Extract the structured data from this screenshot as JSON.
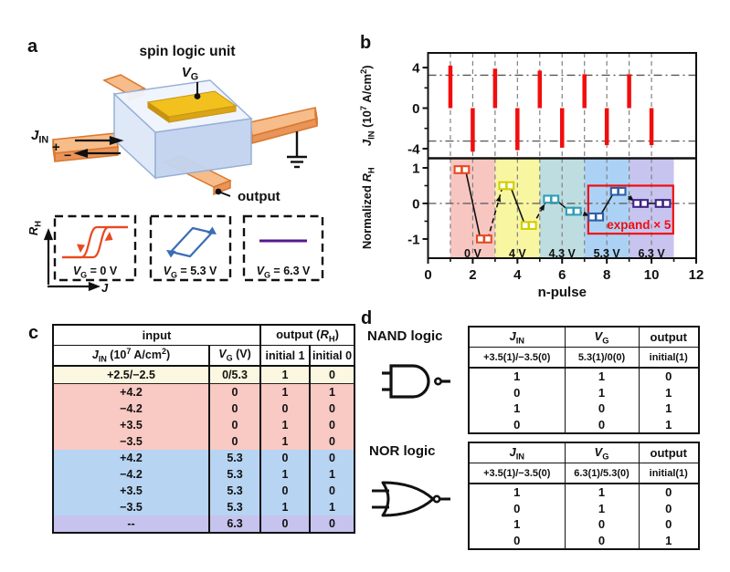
{
  "colors": {
    "bar_red": "#f20d0d",
    "marker_red": "#e8491f",
    "marker_yellow": "#d2ce00",
    "marker_teal": "#2f9eb5",
    "marker_blue": "#2e5fa8",
    "marker_purple": "#3f2486",
    "band_pink": "#f8c6c1",
    "band_yellow": "#f8f6a0",
    "band_teal": "#bedde0",
    "band_blue": "#abd2f5",
    "band_purple": "#c7c4f0",
    "row_cream": "#fbf7e0",
    "row_pink": "#f9c9c4",
    "row_blue": "#b7d4f2",
    "row_purple": "#c6c3ee",
    "orange_top": "#f6bc8a",
    "orange_side": "#e8945a",
    "orange_edge": "#d9782e",
    "cube_top": "#eff4fc",
    "cube_left": "#dde7f7",
    "cube_right": "#c3d3ee",
    "cube_edge": "#97b0d6",
    "gold_top": "#f2c11d",
    "gold_side": "#d9a417",
    "loop_red": "#e8491f",
    "loop_blue": "#3a6db5",
    "loop_purple": "#551a8b",
    "expand_red": "#f20d0d"
  },
  "panel_a": {
    "label": "a",
    "title": "spin logic unit",
    "vg_label": "*V*_{G}",
    "jin_label": "*J*_{IN}",
    "plus": "+",
    "minus": "−",
    "output_label": "output",
    "inset_axis_y": "*R*_{H}",
    "inset_axis_x": "*J*",
    "insets": [
      {
        "caption": "*V*_{G} = 0 V"
      },
      {
        "caption": "*V*_{G} = 5.3 V"
      },
      {
        "caption": "*V*_{G} = 6.3 V"
      }
    ]
  },
  "panel_b": {
    "label": "b"
  },
  "chart_data": [
    {
      "type": "bar",
      "ylabel": "*J*_{IN} (10^{7} A/cm^{2})",
      "x": [
        1,
        2,
        3,
        4,
        5,
        6,
        7,
        8,
        9,
        10
      ],
      "values": [
        4.2,
        -4.3,
        3.9,
        -4.15,
        3.7,
        -3.9,
        3.35,
        -3.65,
        3.35,
        -3.65
      ],
      "ylim": [
        -4.95,
        5.45
      ],
      "yticks": [
        4,
        0,
        -4
      ],
      "minor_yticks": [
        2,
        -2
      ],
      "threshold_lines": [
        3.25,
        -3.25
      ]
    },
    {
      "type": "scatter",
      "ylabel": "Normalized *R*_{H}",
      "xlabel": "n-pulse",
      "xlim": [
        0,
        12
      ],
      "xticks": [
        0,
        2,
        4,
        6,
        8,
        10,
        12
      ],
      "minor_xticks": [
        1,
        3,
        5,
        7,
        9,
        11
      ],
      "ylim": [
        -1.54,
        1.27
      ],
      "yticks": [
        1,
        0,
        -1
      ],
      "minor_yticks": [
        0.5,
        -0.5
      ],
      "zero_line": 0,
      "bands": [
        {
          "x0": 1,
          "x1": 3,
          "label": "0 V",
          "fill": "band_pink",
          "marker": "marker_red"
        },
        {
          "x0": 3,
          "x1": 5,
          "label": "4 V",
          "fill": "band_yellow",
          "marker": "marker_yellow"
        },
        {
          "x0": 5,
          "x1": 7,
          "label": "4.3 V",
          "fill": "band_teal",
          "marker": "marker_teal"
        },
        {
          "x0": 7,
          "x1": 9,
          "label": "5.3 V",
          "fill": "band_blue",
          "marker": "marker_blue"
        },
        {
          "x0": 9,
          "x1": 11,
          "label": "6.3 V",
          "fill": "band_purple",
          "marker": "marker_purple"
        }
      ],
      "points": [
        {
          "n": 1,
          "y": 0.95
        },
        {
          "n": 2,
          "y": -1.0
        },
        {
          "n": 3,
          "y": 0.5
        },
        {
          "n": 4,
          "y": -0.62
        },
        {
          "n": 5,
          "y": 0.12
        },
        {
          "n": 6,
          "y": -0.22
        },
        {
          "n": 7,
          "y": -0.38
        },
        {
          "n": 8,
          "y": 0.34
        },
        {
          "n": 9,
          "y": 0.0
        },
        {
          "n": 10,
          "y": 0.0
        }
      ],
      "expand_box": {
        "x0": 7.17,
        "x1": 10.97,
        "y0": -0.85,
        "y1": 0.5,
        "label": "expand × 5"
      }
    }
  ],
  "panel_c": {
    "label": "c",
    "group_headers": [
      "input",
      "output (*R*_{H})"
    ],
    "columns": [
      "*J*_{IN} (10^{7} A/cm^{2})",
      "*V*_{G} (V)",
      "initial 1",
      "initial 0"
    ],
    "rows": [
      {
        "cells": [
          "+2.5/−2.5",
          "0/5.3",
          "1",
          "0"
        ],
        "bg": "row_cream",
        "divider": true
      },
      {
        "cells": [
          "+4.2",
          "0",
          "1",
          "1"
        ],
        "bg": "row_pink",
        "divider": false
      },
      {
        "cells": [
          "−4.2",
          "0",
          "0",
          "0"
        ],
        "bg": "row_pink",
        "divider": false
      },
      {
        "cells": [
          "+3.5",
          "0",
          "1",
          "0"
        ],
        "bg": "row_pink",
        "divider": false
      },
      {
        "cells": [
          "−3.5",
          "0",
          "1",
          "0"
        ],
        "bg": "row_pink",
        "divider": false
      },
      {
        "cells": [
          "+4.2",
          "5.3",
          "0",
          "0"
        ],
        "bg": "row_blue",
        "divider": false
      },
      {
        "cells": [
          "−4.2",
          "5.3",
          "1",
          "1"
        ],
        "bg": "row_blue",
        "divider": false
      },
      {
        "cells": [
          "+3.5",
          "5.3",
          "0",
          "0"
        ],
        "bg": "row_blue",
        "divider": false
      },
      {
        "cells": [
          "−3.5",
          "5.3",
          "1",
          "1"
        ],
        "bg": "row_blue",
        "divider": false
      },
      {
        "cells": [
          "--",
          "6.3",
          "0",
          "0"
        ],
        "bg": "row_purple",
        "divider": false
      }
    ]
  },
  "panel_d": {
    "label": "d",
    "nand": {
      "title": "NAND logic",
      "columns": [
        "*J*_{IN}",
        "*V*_{G}",
        "output"
      ],
      "value_row": [
        "+3.5(1)/−3.5(0)",
        "5.3(1)/0(0)",
        "initial(1)"
      ],
      "rows": [
        [
          "1",
          "1",
          "0"
        ],
        [
          "0",
          "1",
          "1"
        ],
        [
          "1",
          "0",
          "1"
        ],
        [
          "0",
          "0",
          "1"
        ]
      ]
    },
    "nor": {
      "title": "NOR logic",
      "columns": [
        "*J*_{IN}",
        "*V*_{G}",
        "output"
      ],
      "value_row": [
        "+3.5(1)/−3.5(0)",
        "6.3(1)/5.3(0)",
        "initial(1)"
      ],
      "rows": [
        [
          "1",
          "1",
          "0"
        ],
        [
          "0",
          "1",
          "0"
        ],
        [
          "1",
          "0",
          "0"
        ],
        [
          "0",
          "0",
          "1"
        ]
      ]
    }
  }
}
